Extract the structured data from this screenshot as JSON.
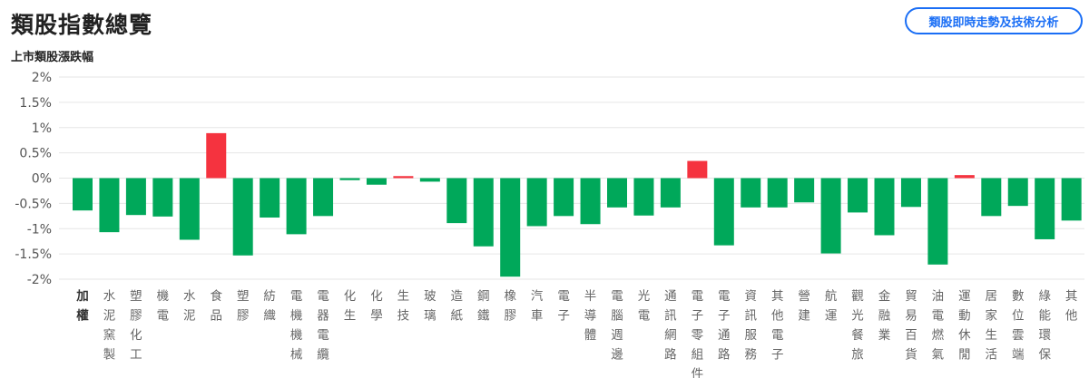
{
  "header": {
    "title": "類股指數總覽",
    "button_label": "類股即時走勢及技術分析"
  },
  "colors": {
    "up": "#f5333f",
    "down": "#00a85a",
    "accent": "#1a6ef5",
    "grid": "#e6e6e6"
  },
  "chart_data": {
    "type": "bar",
    "title": "上市類股漲跌幅",
    "ylim": [
      -2,
      2
    ],
    "yticks": [
      "2%",
      "1.5%",
      "1%",
      "0.5%",
      "0%",
      "-0.5%",
      "-1%",
      "-1.5%",
      "-2%"
    ],
    "ytick_values": [
      2,
      1.5,
      1,
      0.5,
      0,
      -0.5,
      -1,
      -1.5,
      -2
    ],
    "grid": true,
    "unit": "%",
    "categories": [
      "加權",
      "水泥窯製",
      "塑膠化工",
      "機電",
      "水泥",
      "食品",
      "塑膠",
      "紡織",
      "電機機械",
      "電器電纜",
      "化生",
      "化學",
      "生技",
      "玻璃",
      "造紙",
      "鋼鐵",
      "橡膠",
      "汽車",
      "電子",
      "半導體",
      "電腦週邊",
      "光電",
      "通訊網路",
      "電子零組件",
      "電子通路",
      "資訊服務",
      "其他電子",
      "營建",
      "航運",
      "觀光餐旅",
      "金融業",
      "貿易百貨",
      "油電燃氣",
      "運動休閒",
      "居家生活",
      "數位雲端",
      "綠能環保",
      "其他"
    ],
    "values": [
      -0.64,
      -1.07,
      -0.73,
      -0.76,
      -1.22,
      0.89,
      -1.53,
      -0.78,
      -1.11,
      -0.75,
      -0.04,
      -0.13,
      0.04,
      -0.07,
      -0.89,
      -1.35,
      -1.95,
      -0.95,
      -0.75,
      -0.91,
      -0.58,
      -0.74,
      -0.58,
      0.34,
      -1.33,
      -0.58,
      -0.58,
      -0.48,
      -1.49,
      -0.68,
      -1.13,
      -0.57,
      -1.71,
      0.06,
      -0.75,
      -0.55,
      -1.21,
      -0.84
    ]
  }
}
